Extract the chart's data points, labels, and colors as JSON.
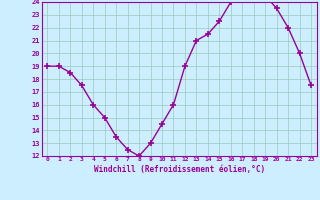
{
  "x": [
    0,
    1,
    2,
    3,
    4,
    5,
    6,
    7,
    8,
    9,
    10,
    11,
    12,
    13,
    14,
    15,
    16,
    17,
    18,
    19,
    20,
    21,
    22,
    23
  ],
  "y": [
    19,
    19,
    18.5,
    17.5,
    16,
    15,
    13.5,
    12.5,
    12,
    13,
    14.5,
    16,
    19,
    21,
    21.5,
    22.5,
    24,
    24.5,
    24.5,
    24.5,
    23.5,
    22,
    20,
    17.5
  ],
  "line_color": "#990099",
  "marker": "+",
  "marker_size": 4,
  "marker_lw": 1.2,
  "bg_color": "#cceeff",
  "grid_color": "#99ccbb",
  "xlabel": "Windchill (Refroidissement éolien,°C)",
  "xlabel_color": "#990099",
  "tick_color": "#990099",
  "xlim_min": -0.5,
  "xlim_max": 23.5,
  "ylim_min": 12,
  "ylim_max": 24,
  "yticks": [
    12,
    13,
    14,
    15,
    16,
    17,
    18,
    19,
    20,
    21,
    22,
    23,
    24
  ],
  "xticks": [
    0,
    1,
    2,
    3,
    4,
    5,
    6,
    7,
    8,
    9,
    10,
    11,
    12,
    13,
    14,
    15,
    16,
    17,
    18,
    19,
    20,
    21,
    22,
    23
  ],
  "xtick_labels": [
    "0",
    "1",
    "2",
    "3",
    "4",
    "5",
    "6",
    "7",
    "8",
    "9",
    "10",
    "11",
    "12",
    "13",
    "14",
    "15",
    "16",
    "17",
    "18",
    "19",
    "20",
    "21",
    "22",
    "23"
  ],
  "spine_color": "#990099",
  "line_width": 1.0
}
